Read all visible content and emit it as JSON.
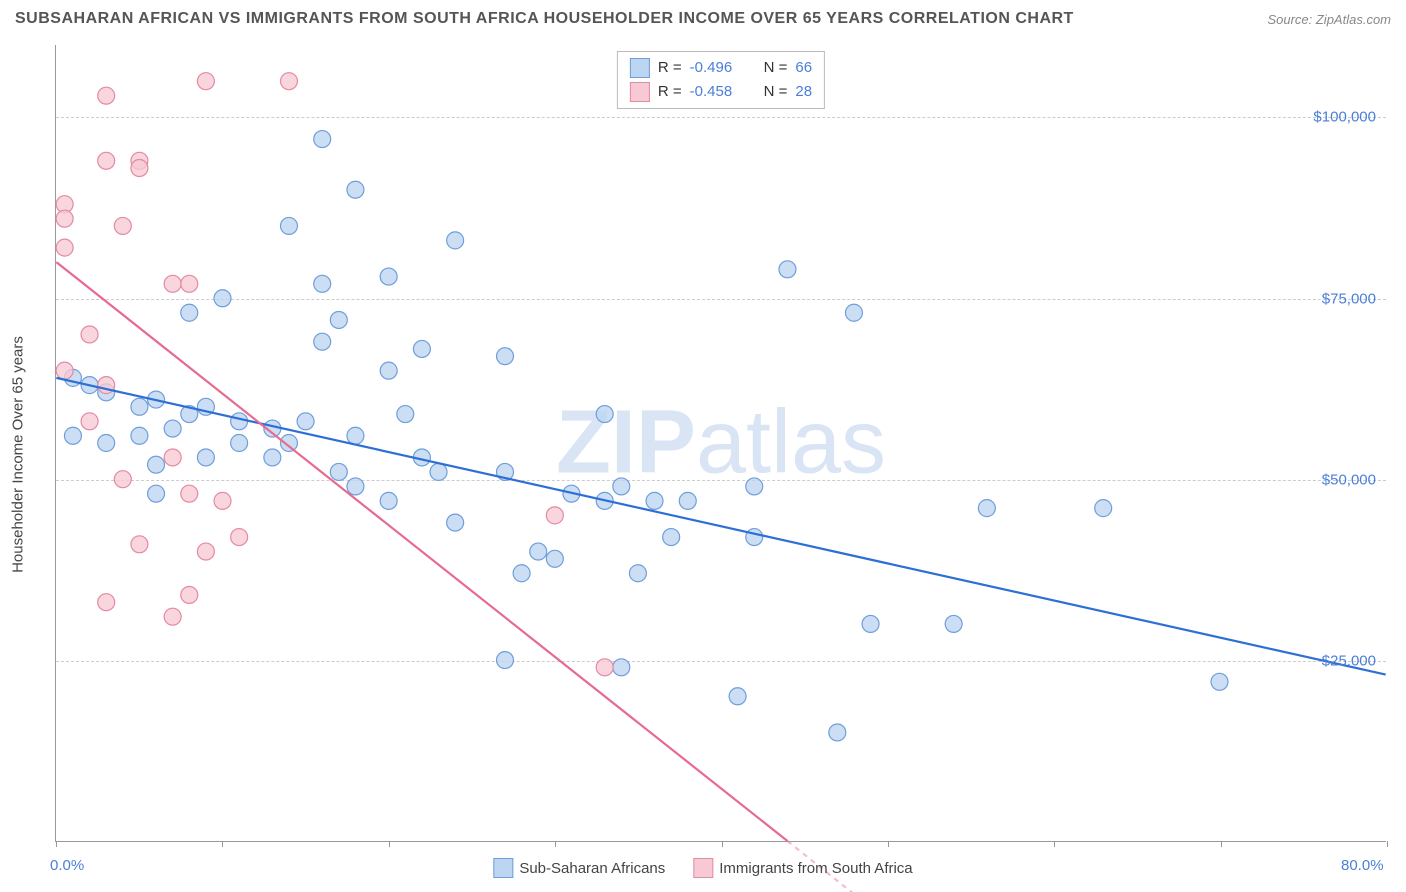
{
  "title": "SUBSAHARAN AFRICAN VS IMMIGRANTS FROM SOUTH AFRICA HOUSEHOLDER INCOME OVER 65 YEARS CORRELATION CHART",
  "source": "Source: ZipAtlas.com",
  "watermark": {
    "prefix": "ZIP",
    "suffix": "atlas"
  },
  "y_axis_title": "Householder Income Over 65 years",
  "xlim": [
    0,
    80
  ],
  "ylim": [
    0,
    110000
  ],
  "x_ticks_minor": [
    0,
    10,
    20,
    30,
    40,
    50,
    60,
    70,
    80
  ],
  "x_labels": [
    {
      "value": 0,
      "label": "0.0%"
    },
    {
      "value": 80,
      "label": "80.0%"
    }
  ],
  "y_gridlines": [
    25000,
    50000,
    75000,
    100000
  ],
  "y_tick_labels": [
    {
      "value": 25000,
      "label": "$25,000"
    },
    {
      "value": 50000,
      "label": "$50,000"
    },
    {
      "value": 75000,
      "label": "$75,000"
    },
    {
      "value": 100000,
      "label": "$100,000"
    }
  ],
  "series": [
    {
      "id": "ssa",
      "name": "Sub-Saharan Africans",
      "fill": "#bcd5f0",
      "stroke": "#6f9edb",
      "line_color": "#2e6fd6",
      "r_value": "-0.496",
      "n_value": "66",
      "regression": {
        "x1": 0,
        "y1": 64000,
        "x2": 80,
        "y2": 23000
      },
      "points": [
        [
          16,
          97000
        ],
        [
          18,
          90000
        ],
        [
          14,
          85000
        ],
        [
          24,
          83000
        ],
        [
          44,
          79000
        ],
        [
          48,
          73000
        ],
        [
          16,
          77000
        ],
        [
          20,
          78000
        ],
        [
          10,
          75000
        ],
        [
          17,
          72000
        ],
        [
          8,
          73000
        ],
        [
          16,
          69000
        ],
        [
          22,
          68000
        ],
        [
          20,
          65000
        ],
        [
          27,
          67000
        ],
        [
          1,
          64000
        ],
        [
          2,
          63000
        ],
        [
          3,
          62000
        ],
        [
          5,
          60000
        ],
        [
          6,
          61000
        ],
        [
          8,
          59000
        ],
        [
          9,
          60000
        ],
        [
          11,
          58000
        ],
        [
          5,
          56000
        ],
        [
          7,
          57000
        ],
        [
          13,
          57000
        ],
        [
          15,
          58000
        ],
        [
          14,
          55000
        ],
        [
          18,
          56000
        ],
        [
          21,
          59000
        ],
        [
          11,
          55000
        ],
        [
          6,
          52000
        ],
        [
          6,
          48000
        ],
        [
          3,
          55000
        ],
        [
          1,
          56000
        ],
        [
          9,
          53000
        ],
        [
          13,
          53000
        ],
        [
          17,
          51000
        ],
        [
          22,
          53000
        ],
        [
          23,
          51000
        ],
        [
          18,
          49000
        ],
        [
          20,
          47000
        ],
        [
          27,
          51000
        ],
        [
          33,
          59000
        ],
        [
          34,
          49000
        ],
        [
          36,
          47000
        ],
        [
          31,
          48000
        ],
        [
          33,
          47000
        ],
        [
          38,
          47000
        ],
        [
          24,
          44000
        ],
        [
          29,
          40000
        ],
        [
          30,
          39000
        ],
        [
          28,
          37000
        ],
        [
          35,
          37000
        ],
        [
          37,
          42000
        ],
        [
          42,
          42000
        ],
        [
          42,
          49000
        ],
        [
          56,
          46000
        ],
        [
          63,
          46000
        ],
        [
          54,
          30000
        ],
        [
          49,
          30000
        ],
        [
          41,
          20000
        ],
        [
          47,
          15000
        ],
        [
          70,
          22000
        ],
        [
          27,
          25000
        ],
        [
          34,
          24000
        ]
      ]
    },
    {
      "id": "imm",
      "name": "Immigrants from South Africa",
      "fill": "#f7c9d5",
      "stroke": "#e48aa3",
      "line_color": "#e76a8f",
      "r_value": "-0.458",
      "n_value": "28",
      "regression": {
        "x1": 0,
        "y1": 80000,
        "x2": 44,
        "y2": 0
      },
      "regression_extrapolate": {
        "x1": 44,
        "y1": 0,
        "x2": 50,
        "y2": -11000
      },
      "points": [
        [
          9,
          105000
        ],
        [
          3,
          103000
        ],
        [
          14,
          105000
        ],
        [
          3,
          94000
        ],
        [
          5,
          94000
        ],
        [
          5,
          93000
        ],
        [
          0.5,
          88000
        ],
        [
          0.5,
          86000
        ],
        [
          4,
          85000
        ],
        [
          0.5,
          82000
        ],
        [
          7,
          77000
        ],
        [
          8,
          77000
        ],
        [
          2,
          70000
        ],
        [
          0.5,
          65000
        ],
        [
          3,
          63000
        ],
        [
          2,
          58000
        ],
        [
          7,
          53000
        ],
        [
          4,
          50000
        ],
        [
          8,
          48000
        ],
        [
          10,
          47000
        ],
        [
          9,
          40000
        ],
        [
          11,
          42000
        ],
        [
          5,
          41000
        ],
        [
          8,
          34000
        ],
        [
          7,
          31000
        ],
        [
          3,
          33000
        ],
        [
          33,
          24000
        ],
        [
          30,
          45000
        ]
      ]
    }
  ],
  "marker_radius": 8.5,
  "marker_opacity": 0.78,
  "line_width": 2.2,
  "plot_background": "#ffffff",
  "grid_color": "#cccccc"
}
